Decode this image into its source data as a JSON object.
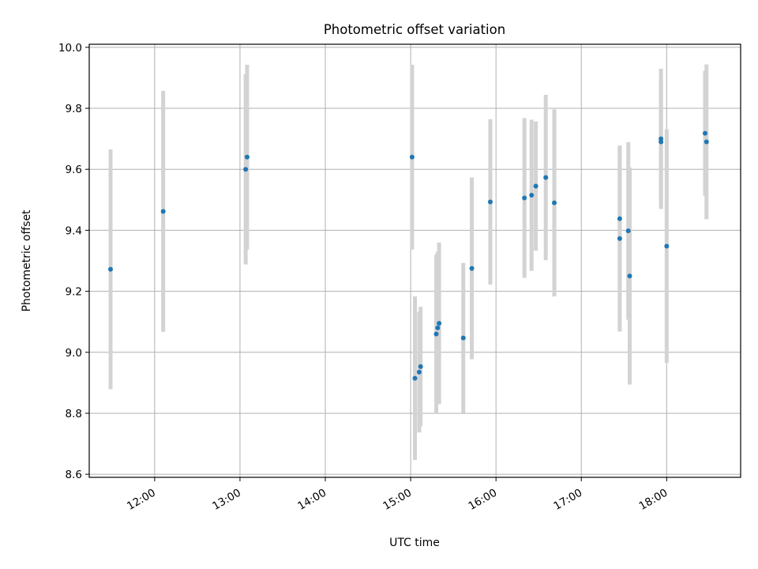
{
  "chart_data": {
    "type": "scatter",
    "title": "Photometric offset variation",
    "xlabel": "UTC time",
    "ylabel": "Photometric offset",
    "xlim": [
      "11:14",
      "18:52"
    ],
    "ylim": [
      8.59,
      10.01
    ],
    "x_ticks": [
      "12:00",
      "13:00",
      "14:00",
      "15:00",
      "16:00",
      "17:00",
      "18:00"
    ],
    "y_ticks": [
      "8.6",
      "8.8",
      "9.0",
      "9.2",
      "9.4",
      "9.6",
      "9.8",
      "10.0"
    ],
    "grid": true,
    "legend": "none",
    "colors": {
      "marker": "#1f77b4",
      "errorbar": "#d3d3d3",
      "grid": "#b0b0b0"
    },
    "series": [
      {
        "points": [
          {
            "x": "11:29",
            "y": 9.272,
            "yerr": 0.393
          },
          {
            "x": "12:06",
            "y": 9.462,
            "yerr": 0.395
          },
          {
            "x": "13:04",
            "y": 9.6,
            "yerr": 0.312
          },
          {
            "x": "13:05",
            "y": 9.64,
            "yerr": 0.303
          },
          {
            "x": "15:01",
            "y": 9.64,
            "yerr": 0.303
          },
          {
            "x": "15:03",
            "y": 8.915,
            "yerr": 0.268
          },
          {
            "x": "15:06",
            "y": 8.935,
            "yerr": 0.198
          },
          {
            "x": "15:07",
            "y": 8.953,
            "yerr": 0.196
          },
          {
            "x": "15:18",
            "y": 9.06,
            "yerr": 0.26
          },
          {
            "x": "15:19",
            "y": 9.08,
            "yerr": 0.25
          },
          {
            "x": "15:20",
            "y": 9.095,
            "yerr": 0.265
          },
          {
            "x": "15:37",
            "y": 9.047,
            "yerr": 0.246
          },
          {
            "x": "15:43",
            "y": 9.275,
            "yerr": 0.298
          },
          {
            "x": "15:56",
            "y": 9.493,
            "yerr": 0.271
          },
          {
            "x": "16:20",
            "y": 9.506,
            "yerr": 0.262
          },
          {
            "x": "16:25",
            "y": 9.515,
            "yerr": 0.248
          },
          {
            "x": "16:28",
            "y": 9.545,
            "yerr": 0.212
          },
          {
            "x": "16:35",
            "y": 9.573,
            "yerr": 0.271
          },
          {
            "x": "16:41",
            "y": 9.49,
            "yerr": 0.307
          },
          {
            "x": "17:27",
            "y": 9.438,
            "yerr": 0.237
          },
          {
            "x": "17:27",
            "y": 9.373,
            "yerr": 0.305
          },
          {
            "x": "17:33",
            "y": 9.398,
            "yerr": 0.291
          },
          {
            "x": "17:34",
            "y": 9.25,
            "yerr": 0.356
          },
          {
            "x": "17:56",
            "y": 9.7,
            "yerr": 0.23
          },
          {
            "x": "17:56",
            "y": 9.69,
            "yerr": 0.205
          },
          {
            "x": "18:00",
            "y": 9.348,
            "yerr": 0.383
          },
          {
            "x": "18:27",
            "y": 9.718,
            "yerr": 0.205
          },
          {
            "x": "18:28",
            "y": 9.69,
            "yerr": 0.254
          }
        ]
      }
    ]
  }
}
